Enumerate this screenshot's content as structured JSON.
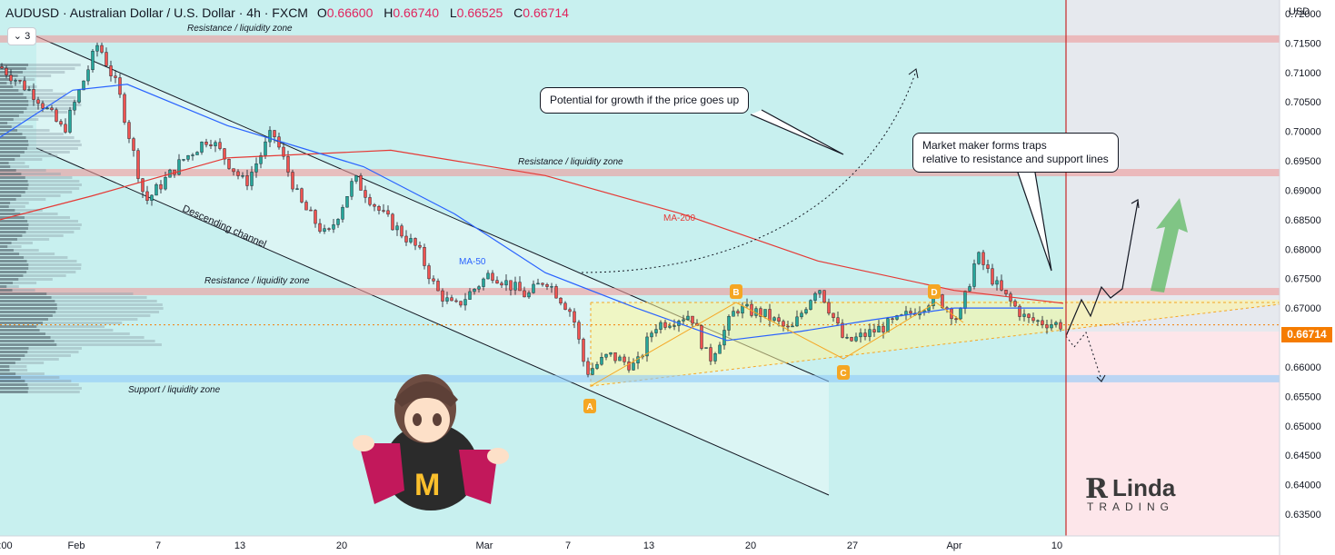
{
  "header": {
    "symbol_line": "AUDUSD · Australian Dollar / U.S. Dollar · 4h · FXCM",
    "o_label": "O",
    "o_value": "0.66600",
    "h_label": "H",
    "h_value": "0.66740",
    "l_label": "L",
    "l_value": "0.66525",
    "c_label": "C",
    "c_value": "0.66714"
  },
  "indicator_badge": "3",
  "currency": "USD",
  "last_price": "0.66714",
  "brand": {
    "line1": "Linda",
    "line2": "TRADING"
  },
  "colors": {
    "up": "#26a69a",
    "down": "#ef5350",
    "ma50": "#2962ff",
    "ma200": "#e53935",
    "zone_red": "#ef9a9a",
    "zone_blue": "#90caf9",
    "marker": "#f5a623",
    "bg_cyan": "#c8f0ef",
    "bg_future": "#e6e9ee",
    "bg_future_low": "#fde6ea"
  },
  "chart_data": {
    "type": "candlestick",
    "y_axis": {
      "ticks": [
        "0.72000",
        "0.71500",
        "0.71000",
        "0.70500",
        "0.70000",
        "0.69500",
        "0.69000",
        "0.68500",
        "0.68000",
        "0.67500",
        "0.67000",
        "0.66500",
        "0.66000",
        "0.65500",
        "0.65000",
        "0.64500",
        "0.64000",
        "0.63500"
      ],
      "ylim": [
        0.6325,
        0.724
      ]
    },
    "x_axis": {
      "ticks": [
        ":00",
        "Feb",
        "7",
        "13",
        "20",
        "Mar",
        "7",
        "13",
        "20",
        "27",
        "Apr",
        "10"
      ]
    },
    "zones": [
      {
        "label": "Resistance / liquidity zone",
        "price": 0.7157
      },
      {
        "label": "Resistance / liquidity zone",
        "price": 0.693
      },
      {
        "label": "Resistance / liquidity zone",
        "price": 0.6728
      },
      {
        "label": "Support / liquidity zone",
        "price": 0.658
      }
    ],
    "annotations": {
      "channel_label": "Descending channel",
      "ma50_label": "MA-50",
      "ma200_label": "MA-200",
      "points": [
        "A",
        "B",
        "C",
        "D"
      ],
      "bubble_growth": "Potential for growth if the price goes up",
      "bubble_traps_1": "Market maker forms traps",
      "bubble_traps_2": "relative to resistance and support lines"
    },
    "ma200": [
      [
        0,
        0.685
      ],
      [
        100,
        0.689
      ],
      [
        250,
        0.6955
      ],
      [
        430,
        0.6968
      ],
      [
        600,
        0.6925
      ],
      [
        750,
        0.686
      ],
      [
        900,
        0.678
      ],
      [
        1050,
        0.673
      ],
      [
        1170,
        0.6708
      ]
    ],
    "ma50": [
      [
        0,
        0.699
      ],
      [
        80,
        0.707
      ],
      [
        140,
        0.708
      ],
      [
        250,
        0.701
      ],
      [
        400,
        0.694
      ],
      [
        500,
        0.686
      ],
      [
        600,
        0.676
      ],
      [
        700,
        0.67
      ],
      [
        800,
        0.6645
      ],
      [
        880,
        0.666
      ],
      [
        960,
        0.668
      ],
      [
        1050,
        0.67
      ],
      [
        1170,
        0.67
      ]
    ],
    "path": [
      [
        0,
        0.711
      ],
      [
        40,
        0.706
      ],
      [
        70,
        0.7
      ],
      [
        108,
        0.715
      ],
      [
        130,
        0.707
      ],
      [
        160,
        0.688
      ],
      [
        200,
        0.695
      ],
      [
        230,
        0.699
      ],
      [
        270,
        0.691
      ],
      [
        300,
        0.7
      ],
      [
        330,
        0.688
      ],
      [
        360,
        0.682
      ],
      [
        390,
        0.692
      ],
      [
        420,
        0.686
      ],
      [
        460,
        0.68
      ],
      [
        480,
        0.673
      ],
      [
        500,
        0.67
      ],
      [
        540,
        0.676
      ],
      [
        580,
        0.672
      ],
      [
        600,
        0.675
      ],
      [
        630,
        0.669
      ],
      [
        645,
        0.659
      ],
      [
        670,
        0.662
      ],
      [
        700,
        0.66
      ],
      [
        720,
        0.667
      ],
      [
        760,
        0.669
      ],
      [
        780,
        0.661
      ],
      [
        810,
        0.67
      ],
      [
        840,
        0.669
      ],
      [
        870,
        0.666
      ],
      [
        900,
        0.674
      ],
      [
        930,
        0.664
      ],
      [
        960,
        0.666
      ],
      [
        990,
        0.668
      ],
      [
        1030,
        0.672
      ],
      [
        1055,
        0.668
      ],
      [
        1075,
        0.679
      ],
      [
        1100,
        0.673
      ],
      [
        1130,
        0.668
      ],
      [
        1170,
        0.6671
      ]
    ]
  }
}
